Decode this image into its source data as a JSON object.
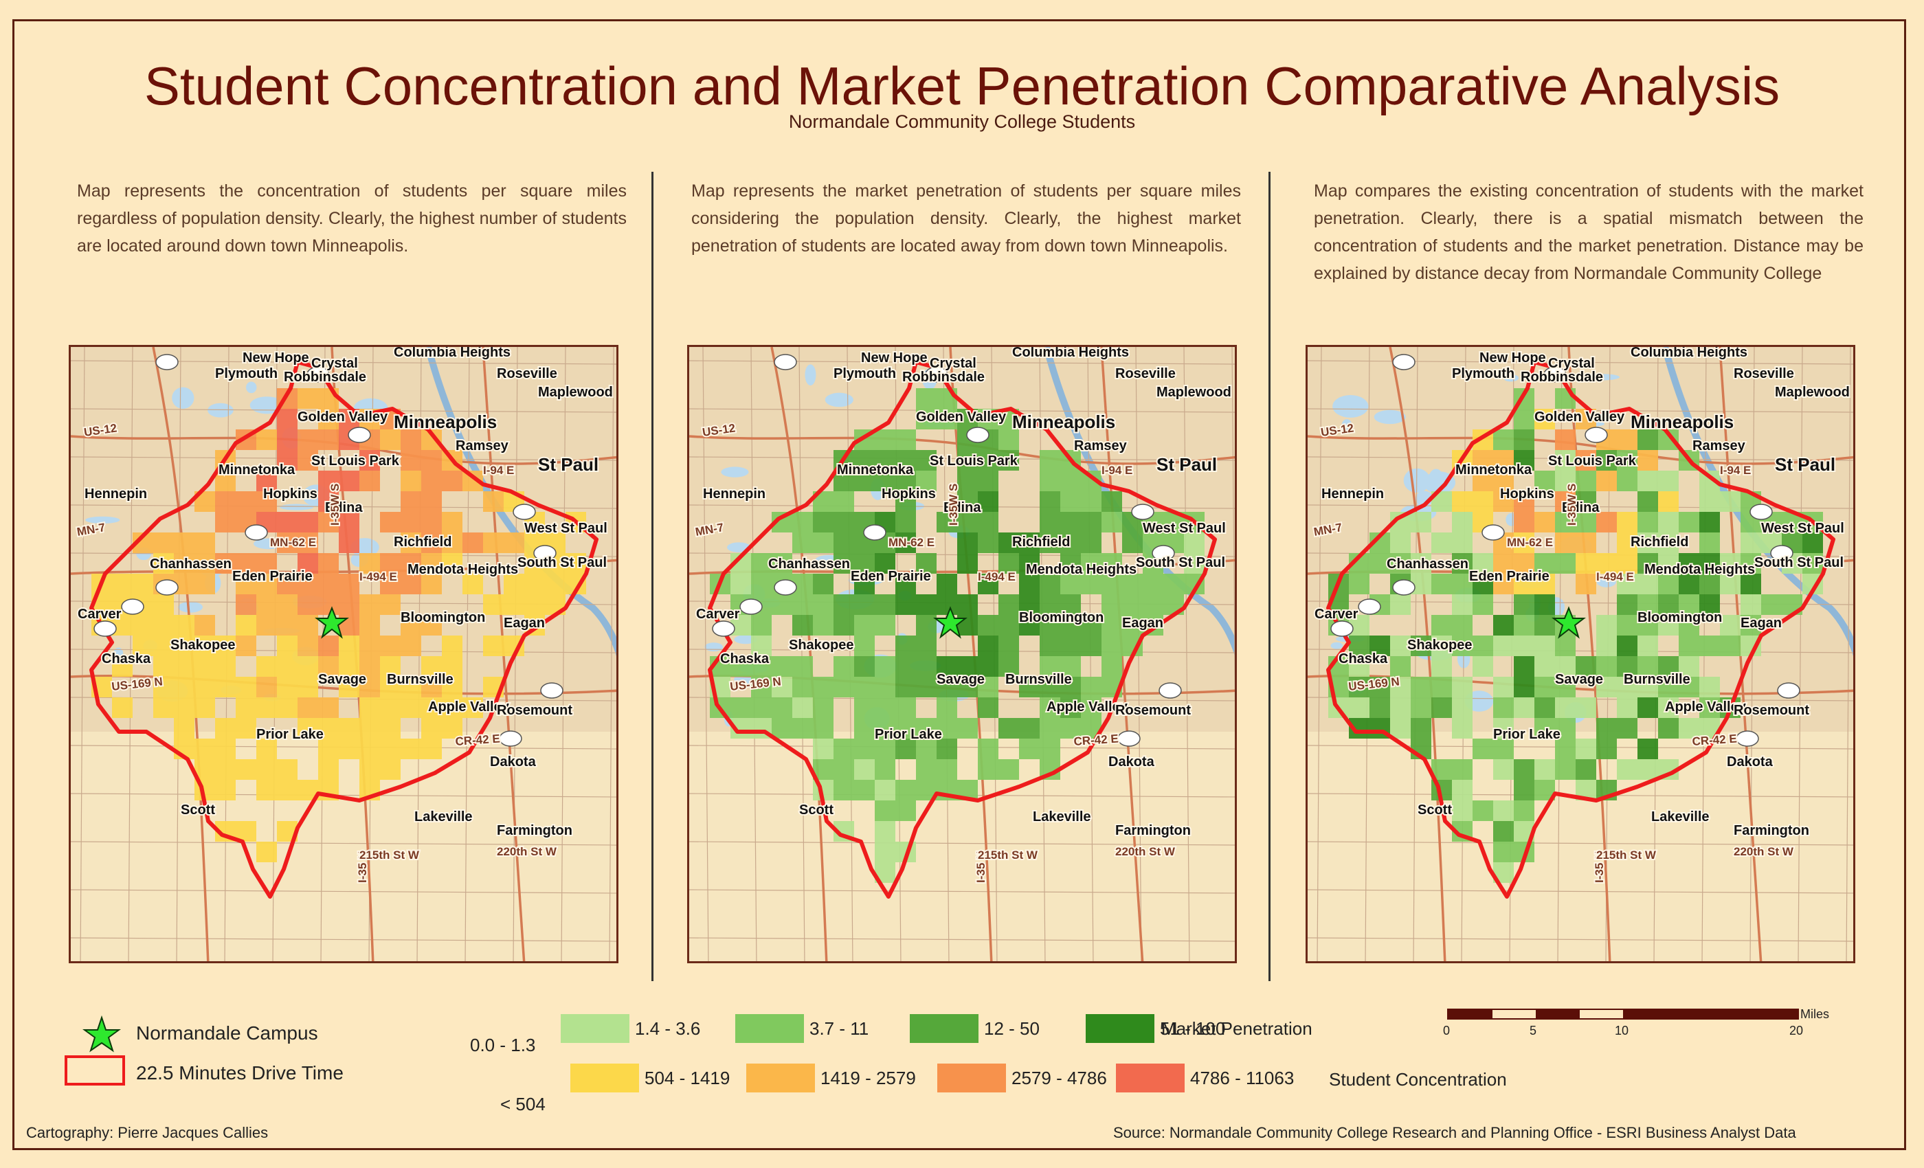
{
  "title": "Student Concentration and Market Penetration Comparative Analysis",
  "subtitle": "Normandale Community College Students",
  "panels": [
    {
      "description": "Map represents the concentration of students per square miles regardless of population density.  Clearly, the highest number of students are located around down town Minneapolis."
    },
    {
      "description": "Map represents the market penetration of students per square miles considering the population density.  Clearly, the highest market penetration of students are located away from down town Minneapolis."
    },
    {
      "description": "Map compares the existing concentration of students with the market penetration.  Clearly, there is a spatial mismatch between the concentration of students and the market penetration.  Distance may be explained by distance decay from Normandale Community College"
    }
  ],
  "places": {
    "minneapolis": "Minneapolis",
    "st_paul": "St Paul",
    "bloomington": "Bloomington",
    "edina": "Edina",
    "minnetonka": "Minnetonka",
    "hopkins": "Hopkins",
    "st_louis_park": "St Louis Park",
    "richfield": "Richfield",
    "eden_prairie": "Eden Prairie",
    "chanhassen": "Chanhassen",
    "chaska": "Chaska",
    "shakopee": "Shakopee",
    "savage": "Savage",
    "burnsville": "Burnsville",
    "apple_valley": "Apple Valley",
    "rosemount": "Rosemount",
    "eagan": "Eagan",
    "prior_lake": "Prior Lake",
    "lakeville": "Lakeville",
    "farmington": "Farmington",
    "golden_valley": "Golden Valley",
    "plymouth": "Plymouth",
    "crystal": "Crystal",
    "new_hope": "New Hope",
    "robbinsdale": "Robbinsdale",
    "columbia_heights": "Columbia Heights",
    "roseville": "Roseville",
    "maplewood": "Maplewood",
    "west_st_paul": "West St Paul",
    "south_st_paul": "South St Paul",
    "mendota_heights": "Mendota Heights",
    "hennepin": "Hennepin",
    "scott": "Scott",
    "dakota": "Dakota",
    "ramsey": "Ramsey",
    "carver": "Carver"
  },
  "roads": {
    "i494": "I-494 E",
    "i35w": "I-35W S",
    "us169": "US-169 N",
    "us12": "US-12",
    "mn62": "MN-62 E",
    "mn7": "MN-7",
    "cr42": "CR-42 E",
    "i35": "I-35 N",
    "st215": "215th St W",
    "st220": "220th St W",
    "i94": "I-94 E"
  },
  "colors": {
    "background": "#fde9c1",
    "drive_time": "#ee1c1c",
    "campus_star": "#2ee82e",
    "water": "#b9d9ef",
    "road": "#d47a52"
  },
  "legend": {
    "campus_label": "Normandale Campus",
    "drive_label": "22.5 Minutes Drive Time",
    "mp_title": "Market Penetration",
    "sc_title": "Student Concentration",
    "mp_low": "0.0 - 1.3",
    "sc_low": "< 504",
    "mp_classes": [
      {
        "label": "1.4 - 3.6",
        "color": "#b3e28f"
      },
      {
        "label": "3.7 - 11",
        "color": "#80c95e"
      },
      {
        "label": "12 - 50",
        "color": "#55a83a"
      },
      {
        "label": "51 - 100",
        "color": "#2f8a1c"
      }
    ],
    "sc_classes": [
      {
        "label": "504 - 1419",
        "color": "#fcd84a"
      },
      {
        "label": "1419 - 2579",
        "color": "#fbb74a"
      },
      {
        "label": "2579 - 4786",
        "color": "#f7924c"
      },
      {
        "label": "4786 - 11063",
        "color": "#f26a4e"
      }
    ]
  },
  "scale_bar": {
    "unit": "Miles",
    "ticks": [
      "0",
      "5",
      "10",
      "20"
    ]
  },
  "footer": {
    "cartography": "Cartography: Pierre Jacques Callies",
    "source": "Source:  Normandale Community College Research and Planning Office -  ESRI Business Analyst Data"
  }
}
